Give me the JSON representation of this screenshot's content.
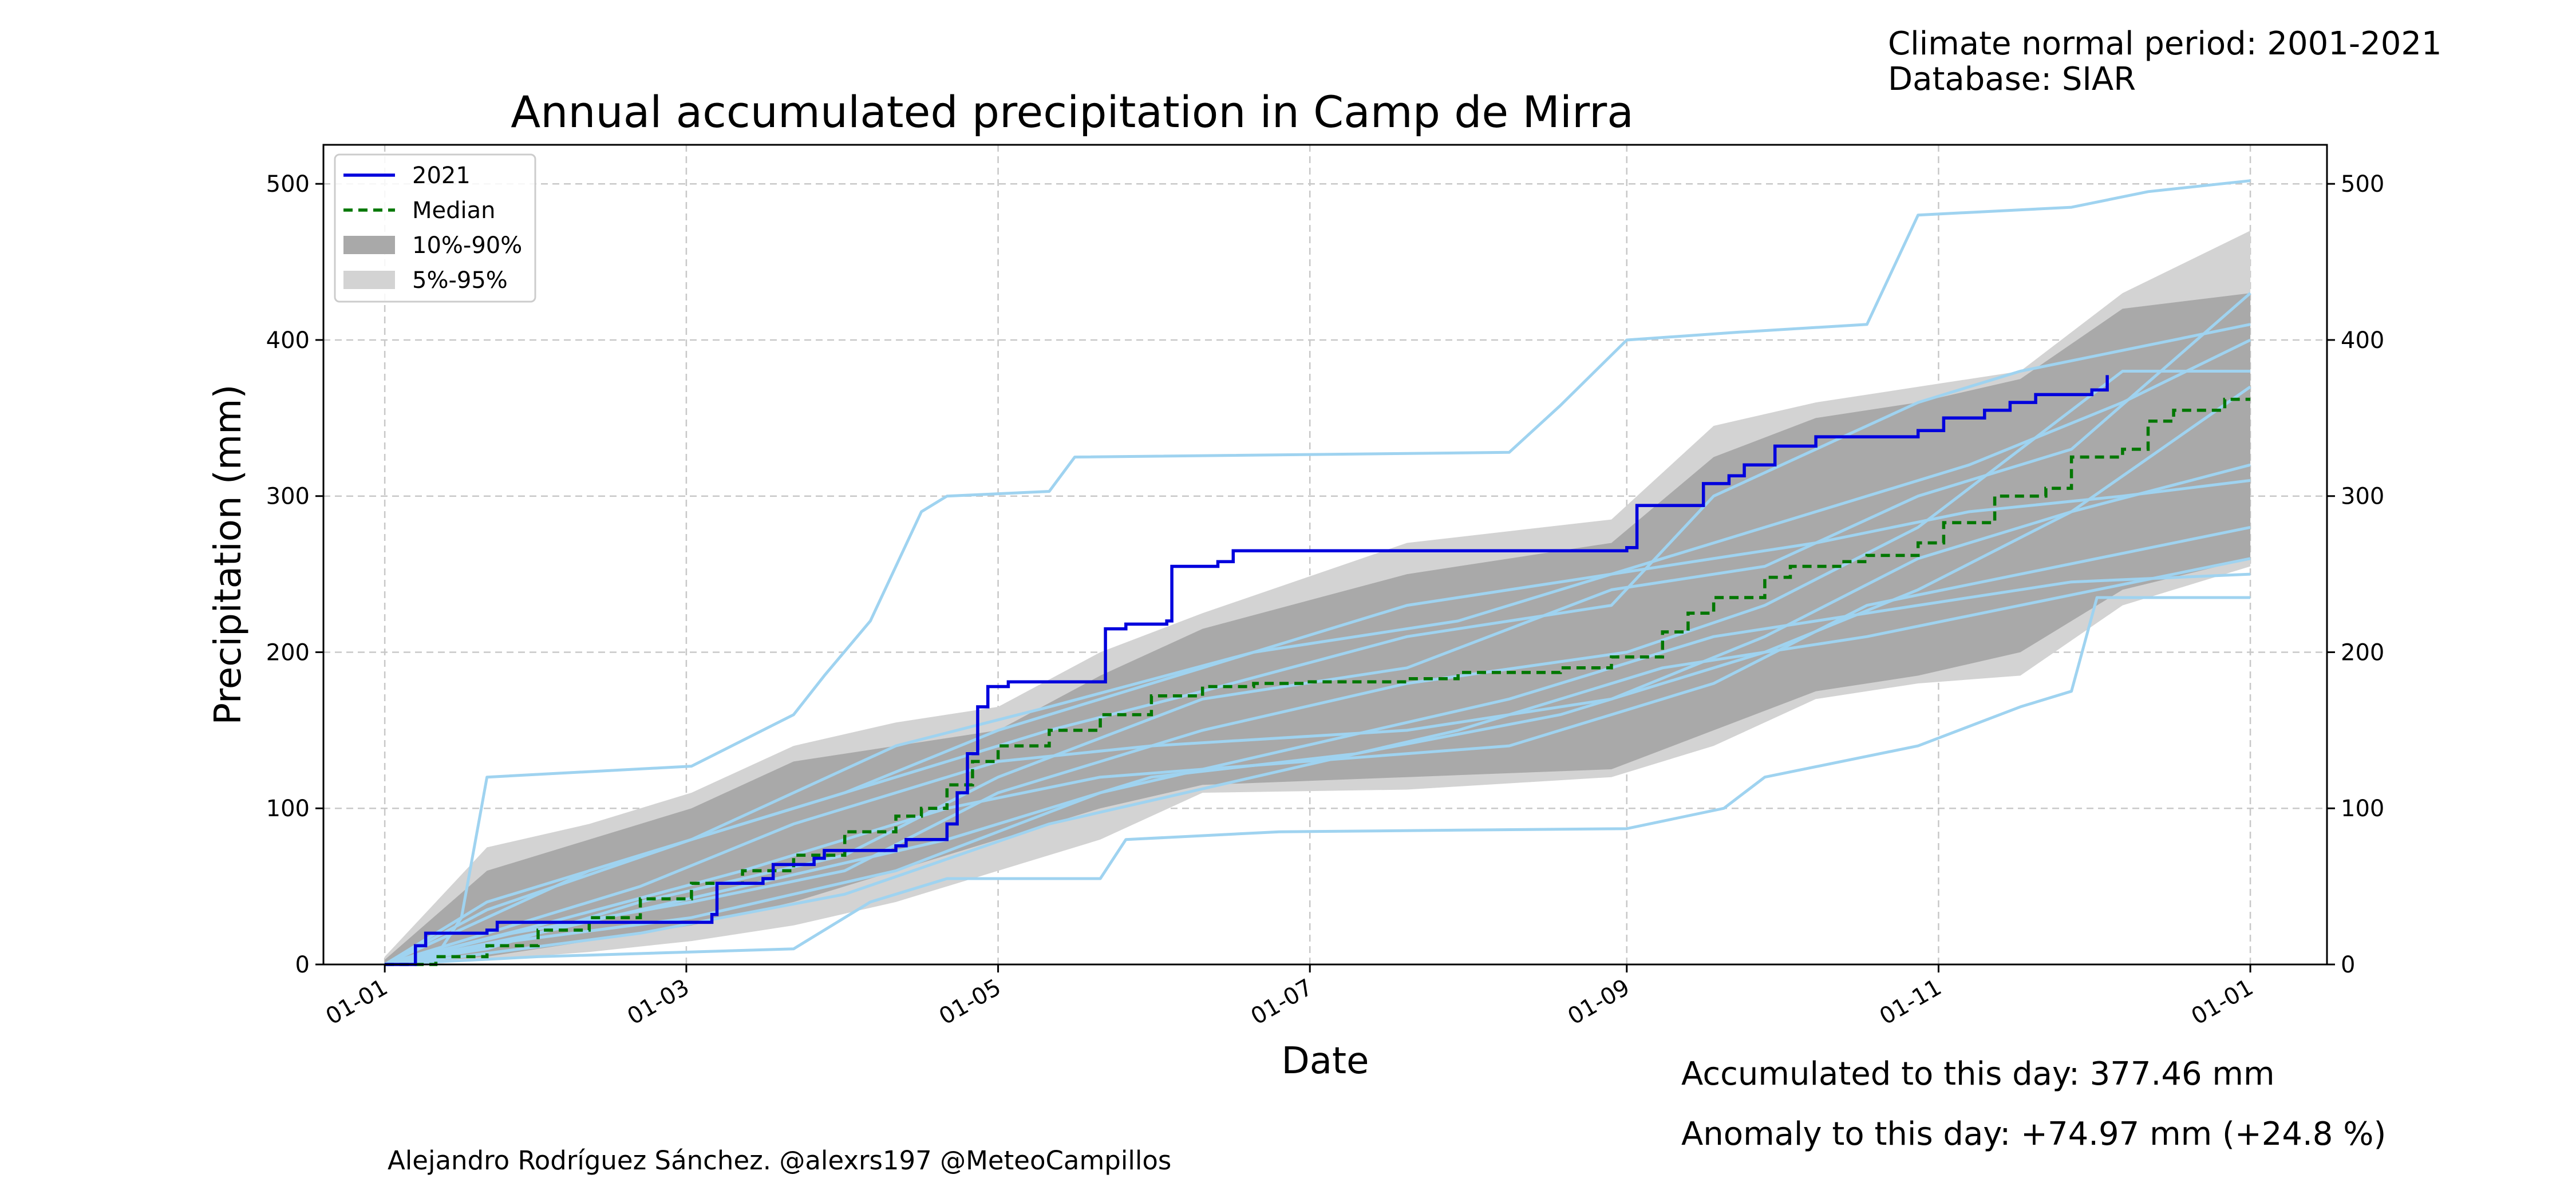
{
  "header": {
    "normal_period": "Climate normal period: 2001-2021",
    "database": "Database: SIAR"
  },
  "footer": {
    "accumulated": "Accumulated to this day: 377.46 mm",
    "anomaly": "Anomaly to this day: +74.97 mm (+24.8 %)",
    "credit": "Alejandro Rodríguez Sánchez. @alexrs197 @MeteoCampillos"
  },
  "colors": {
    "current_year": "#0000dd",
    "median": "#007700",
    "band_10_90": "#a9a9a9",
    "band_5_95": "#d3d3d3",
    "past_years": "#9fd3f0",
    "anomaly_text": "#0000ff",
    "grid": "#c8c8c8"
  },
  "chart_data": {
    "type": "line",
    "title": "Annual accumulated precipitation in Camp de Mirra",
    "xlabel": "Date",
    "ylabel": "Precipitation (mm)",
    "x_unit": "day of year",
    "xlim": [
      -12,
      380
    ],
    "ylim": [
      0,
      525
    ],
    "x_ticks": [
      {
        "day": 0,
        "label": "01-01"
      },
      {
        "day": 59,
        "label": "01-03"
      },
      {
        "day": 120,
        "label": "01-05"
      },
      {
        "day": 181,
        "label": "01-07"
      },
      {
        "day": 243,
        "label": "01-09"
      },
      {
        "day": 304,
        "label": "01-11"
      },
      {
        "day": 365,
        "label": "01-01"
      }
    ],
    "y_ticks": [
      0,
      100,
      200,
      300,
      400,
      500
    ],
    "grid": true,
    "legend_position": "top-left",
    "legend": [
      "2021",
      "Median",
      "10%-90%",
      "5%-95%"
    ],
    "series": [
      {
        "name": "2021",
        "style": "solid",
        "points": [
          [
            0,
            0
          ],
          [
            4,
            0
          ],
          [
            6,
            12
          ],
          [
            8,
            20
          ],
          [
            20,
            22
          ],
          [
            22,
            27
          ],
          [
            62,
            27
          ],
          [
            64,
            32
          ],
          [
            65,
            52
          ],
          [
            74,
            55
          ],
          [
            76,
            64
          ],
          [
            84,
            68
          ],
          [
            86,
            73
          ],
          [
            98,
            73
          ],
          [
            100,
            76
          ],
          [
            102,
            80
          ],
          [
            108,
            80
          ],
          [
            110,
            90
          ],
          [
            112,
            110
          ],
          [
            114,
            135
          ],
          [
            116,
            165
          ],
          [
            118,
            178
          ],
          [
            122,
            181
          ],
          [
            140,
            181
          ],
          [
            141,
            215
          ],
          [
            145,
            218
          ],
          [
            153,
            220
          ],
          [
            154,
            255
          ],
          [
            163,
            258
          ],
          [
            166,
            265
          ],
          [
            243,
            267
          ],
          [
            245,
            294
          ],
          [
            256,
            294
          ],
          [
            258,
            308
          ],
          [
            263,
            313
          ],
          [
            266,
            320
          ],
          [
            272,
            332
          ],
          [
            280,
            338
          ],
          [
            300,
            342
          ],
          [
            305,
            350
          ],
          [
            313,
            355
          ],
          [
            318,
            360
          ],
          [
            323,
            365
          ],
          [
            334,
            368
          ],
          [
            337,
            377.46
          ]
        ]
      },
      {
        "name": "Median",
        "style": "dashed",
        "points": [
          [
            0,
            0
          ],
          [
            10,
            5
          ],
          [
            20,
            12
          ],
          [
            30,
            22
          ],
          [
            40,
            30
          ],
          [
            50,
            42
          ],
          [
            60,
            52
          ],
          [
            70,
            60
          ],
          [
            80,
            70
          ],
          [
            90,
            85
          ],
          [
            100,
            95
          ],
          [
            105,
            100
          ],
          [
            110,
            115
          ],
          [
            115,
            130
          ],
          [
            120,
            140
          ],
          [
            130,
            150
          ],
          [
            140,
            160
          ],
          [
            150,
            172
          ],
          [
            160,
            178
          ],
          [
            170,
            180
          ],
          [
            180,
            181
          ],
          [
            200,
            183
          ],
          [
            210,
            187
          ],
          [
            230,
            190
          ],
          [
            240,
            197
          ],
          [
            250,
            213
          ],
          [
            255,
            225
          ],
          [
            260,
            235
          ],
          [
            270,
            248
          ],
          [
            275,
            255
          ],
          [
            285,
            258
          ],
          [
            290,
            262
          ],
          [
            300,
            270
          ],
          [
            305,
            283
          ],
          [
            315,
            300
          ],
          [
            325,
            305
          ],
          [
            330,
            325
          ],
          [
            340,
            330
          ],
          [
            345,
            348
          ],
          [
            350,
            355
          ],
          [
            360,
            362
          ],
          [
            365,
            362
          ]
        ]
      }
    ],
    "bands": [
      {
        "name": "5%-95%",
        "upper": [
          [
            0,
            5
          ],
          [
            20,
            75
          ],
          [
            40,
            90
          ],
          [
            60,
            110
          ],
          [
            80,
            140
          ],
          [
            100,
            155
          ],
          [
            120,
            165
          ],
          [
            140,
            200
          ],
          [
            160,
            225
          ],
          [
            200,
            270
          ],
          [
            240,
            285
          ],
          [
            260,
            345
          ],
          [
            280,
            360
          ],
          [
            300,
            370
          ],
          [
            320,
            380
          ],
          [
            340,
            430
          ],
          [
            365,
            470
          ]
        ],
        "lower": [
          [
            0,
            0
          ],
          [
            20,
            3
          ],
          [
            40,
            8
          ],
          [
            60,
            15
          ],
          [
            80,
            25
          ],
          [
            100,
            40
          ],
          [
            120,
            60
          ],
          [
            140,
            80
          ],
          [
            160,
            110
          ],
          [
            200,
            112
          ],
          [
            240,
            120
          ],
          [
            260,
            140
          ],
          [
            280,
            170
          ],
          [
            300,
            180
          ],
          [
            320,
            185
          ],
          [
            340,
            230
          ],
          [
            365,
            255
          ]
        ]
      },
      {
        "name": "10%-90%",
        "upper": [
          [
            0,
            3
          ],
          [
            20,
            60
          ],
          [
            40,
            80
          ],
          [
            60,
            100
          ],
          [
            80,
            130
          ],
          [
            100,
            140
          ],
          [
            120,
            150
          ],
          [
            140,
            185
          ],
          [
            160,
            215
          ],
          [
            200,
            250
          ],
          [
            240,
            270
          ],
          [
            260,
            325
          ],
          [
            280,
            350
          ],
          [
            300,
            360
          ],
          [
            320,
            375
          ],
          [
            340,
            420
          ],
          [
            365,
            430
          ]
        ],
        "lower": [
          [
            0,
            0
          ],
          [
            20,
            5
          ],
          [
            40,
            15
          ],
          [
            60,
            25
          ],
          [
            80,
            40
          ],
          [
            100,
            60
          ],
          [
            120,
            80
          ],
          [
            140,
            100
          ],
          [
            160,
            115
          ],
          [
            200,
            120
          ],
          [
            240,
            125
          ],
          [
            260,
            150
          ],
          [
            280,
            175
          ],
          [
            300,
            185
          ],
          [
            320,
            200
          ],
          [
            340,
            240
          ],
          [
            365,
            260
          ]
        ]
      }
    ],
    "past_years": [
      [
        [
          0,
          0
        ],
        [
          10,
          5
        ],
        [
          15,
          30
        ],
        [
          20,
          120
        ],
        [
          60,
          127
        ],
        [
          80,
          160
        ],
        [
          86,
          185
        ],
        [
          95,
          220
        ],
        [
          105,
          290
        ],
        [
          110,
          300
        ],
        [
          130,
          303
        ],
        [
          135,
          325
        ],
        [
          220,
          328
        ],
        [
          230,
          358
        ],
        [
          243,
          400
        ],
        [
          265,
          405
        ],
        [
          290,
          410
        ],
        [
          300,
          480
        ],
        [
          330,
          485
        ],
        [
          345,
          495
        ],
        [
          365,
          502
        ]
      ],
      [
        [
          0,
          0
        ],
        [
          30,
          5
        ],
        [
          80,
          10
        ],
        [
          95,
          40
        ],
        [
          110,
          55
        ],
        [
          140,
          55
        ],
        [
          145,
          80
        ],
        [
          175,
          85
        ],
        [
          243,
          87
        ],
        [
          262,
          100
        ],
        [
          270,
          120
        ],
        [
          300,
          140
        ],
        [
          320,
          165
        ],
        [
          330,
          175
        ],
        [
          335,
          235
        ],
        [
          365,
          235
        ]
      ],
      [
        [
          0,
          0
        ],
        [
          20,
          30
        ],
        [
          40,
          60
        ],
        [
          80,
          100
        ],
        [
          100,
          120
        ],
        [
          130,
          150
        ],
        [
          160,
          175
        ],
        [
          200,
          210
        ],
        [
          240,
          230
        ],
        [
          260,
          300
        ],
        [
          300,
          360
        ],
        [
          320,
          380
        ],
        [
          365,
          410
        ]
      ],
      [
        [
          0,
          0
        ],
        [
          25,
          20
        ],
        [
          60,
          40
        ],
        [
          90,
          60
        ],
        [
          120,
          110
        ],
        [
          160,
          150
        ],
        [
          200,
          180
        ],
        [
          243,
          200
        ],
        [
          270,
          230
        ],
        [
          300,
          280
        ],
        [
          320,
          330
        ],
        [
          340,
          380
        ],
        [
          365,
          380
        ]
      ],
      [
        [
          0,
          0
        ],
        [
          20,
          10
        ],
        [
          50,
          40
        ],
        [
          90,
          70
        ],
        [
          120,
          120
        ],
        [
          160,
          170
        ],
        [
          200,
          190
        ],
        [
          240,
          240
        ],
        [
          270,
          255
        ],
        [
          300,
          300
        ],
        [
          330,
          330
        ],
        [
          365,
          430
        ]
      ],
      [
        [
          0,
          0
        ],
        [
          15,
          15
        ],
        [
          50,
          50
        ],
        [
          80,
          90
        ],
        [
          120,
          130
        ],
        [
          150,
          140
        ],
        [
          200,
          150
        ],
        [
          240,
          170
        ],
        [
          270,
          210
        ],
        [
          300,
          260
        ],
        [
          330,
          290
        ],
        [
          365,
          320
        ]
      ],
      [
        [
          0,
          0
        ],
        [
          30,
          25
        ],
        [
          70,
          60
        ],
        [
          110,
          100
        ],
        [
          140,
          120
        ],
        [
          180,
          130
        ],
        [
          220,
          140
        ],
        [
          260,
          180
        ],
        [
          290,
          230
        ],
        [
          320,
          250
        ],
        [
          365,
          280
        ]
      ],
      [
        [
          0,
          0
        ],
        [
          20,
          35
        ],
        [
          60,
          80
        ],
        [
          100,
          140
        ],
        [
          130,
          165
        ],
        [
          170,
          200
        ],
        [
          210,
          220
        ],
        [
          250,
          260
        ],
        [
          280,
          290
        ],
        [
          310,
          320
        ],
        [
          340,
          360
        ],
        [
          365,
          400
        ]
      ],
      [
        [
          0,
          0
        ],
        [
          25,
          15
        ],
        [
          60,
          30
        ],
        [
          100,
          60
        ],
        [
          140,
          110
        ],
        [
          180,
          140
        ],
        [
          220,
          170
        ],
        [
          260,
          210
        ],
        [
          300,
          230
        ],
        [
          330,
          245
        ],
        [
          365,
          250
        ]
      ],
      [
        [
          0,
          0
        ],
        [
          15,
          5
        ],
        [
          50,
          20
        ],
        [
          90,
          45
        ],
        [
          130,
          90
        ],
        [
          170,
          120
        ],
        [
          210,
          150
        ],
        [
          250,
          190
        ],
        [
          290,
          210
        ],
        [
          320,
          230
        ],
        [
          365,
          260
        ]
      ],
      [
        [
          0,
          0
        ],
        [
          20,
          40
        ],
        [
          50,
          70
        ],
        [
          90,
          110
        ],
        [
          120,
          150
        ],
        [
          160,
          190
        ],
        [
          200,
          230
        ],
        [
          240,
          250
        ],
        [
          280,
          270
        ],
        [
          310,
          290
        ],
        [
          340,
          300
        ],
        [
          365,
          310
        ]
      ],
      [
        [
          0,
          0
        ],
        [
          30,
          20
        ],
        [
          70,
          50
        ],
        [
          110,
          80
        ],
        [
          150,
          120
        ],
        [
          190,
          135
        ],
        [
          230,
          160
        ],
        [
          270,
          200
        ],
        [
          300,
          240
        ],
        [
          330,
          290
        ],
        [
          365,
          370
        ]
      ]
    ]
  }
}
